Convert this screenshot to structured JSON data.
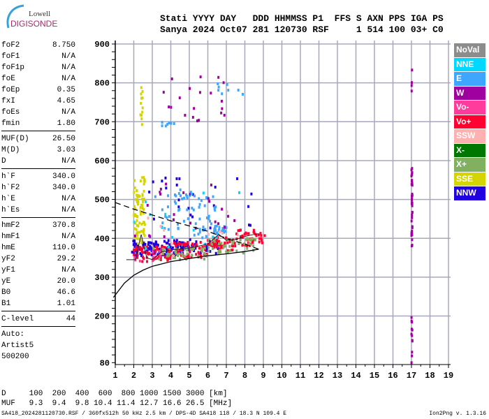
{
  "logo": {
    "line1": "Lowell",
    "line2": "DIGISONDE"
  },
  "header": {
    "labels": "Stati YYYY DAY   DDD HHMMSS P1  FFS S AXN PPS IGA PS",
    "values": "Sanya 2024 Oct07 281 120730 RSF     1 514 100 03+ C0"
  },
  "params": [
    [
      {
        "k": "foF2",
        "v": "8.750"
      },
      {
        "k": "foF1",
        "v": "N/A"
      },
      {
        "k": "foF1p",
        "v": "N/A"
      },
      {
        "k": "foE",
        "v": "N/A"
      },
      {
        "k": "foEp",
        "v": "0.35"
      },
      {
        "k": "fxI",
        "v": "4.65"
      },
      {
        "k": "foEs",
        "v": "N/A"
      },
      {
        "k": "fmin",
        "v": "1.80"
      }
    ],
    [
      {
        "k": "MUF(D)",
        "v": "26.50"
      },
      {
        "k": "M(D)",
        "v": "3.03"
      },
      {
        "k": "D",
        "v": "N/A"
      }
    ],
    [
      {
        "k": "h`F",
        "v": "340.0"
      },
      {
        "k": "h`F2",
        "v": "340.0"
      },
      {
        "k": "h`E",
        "v": "N/A"
      },
      {
        "k": "h`Es",
        "v": "N/A"
      }
    ],
    [
      {
        "k": "hmF2",
        "v": "370.8"
      },
      {
        "k": "hmF1",
        "v": "N/A"
      },
      {
        "k": "hmE",
        "v": "110.0"
      },
      {
        "k": "yF2",
        "v": "29.2"
      },
      {
        "k": "yF1",
        "v": "N/A"
      },
      {
        "k": "yE",
        "v": "20.0"
      },
      {
        "k": "B0",
        "v": "46.6"
      },
      {
        "k": "B1",
        "v": "1.01"
      }
    ],
    [
      {
        "k": "C-level",
        "v": "44"
      }
    ]
  ],
  "autoscaling": {
    "l1": "Auto:",
    "l2": "Artist5",
    "l3": "500200"
  },
  "legend": [
    {
      "label": "NoVal",
      "color": "#8c8c8c"
    },
    {
      "label": "NNE",
      "color": "#00d8ff"
    },
    {
      "label": "E",
      "color": "#3ea6ff"
    },
    {
      "label": "W",
      "color": "#a000a0"
    },
    {
      "label": "Vo-",
      "color": "#ff3c9c"
    },
    {
      "label": "Vo+",
      "color": "#ff0030"
    },
    {
      "label": "SSW",
      "color": "#ffb0b0"
    },
    {
      "label": "X-",
      "color": "#007800"
    },
    {
      "label": "X+",
      "color": "#80b060"
    },
    {
      "label": "SSE",
      "color": "#d4d400"
    },
    {
      "label": "NNW",
      "color": "#2000e0"
    }
  ],
  "muf_table": {
    "d_line": "D     100  200  400  600  800 1000 1500 3000 [km]",
    "muf_line": "MUF   9.3  9.4  9.8 10.4 11.4 12.7 16.6 26.5 [MHz]"
  },
  "footer": "SA418_2024281120730.RSF / 360fx512h 50 kHz 2.5 km / DPS-4D SA418 118 / 18.3 N 109.4 E",
  "version": "Ion2Png v. 1.3.16",
  "chart_data": {
    "type": "scatter",
    "xlim": [
      1,
      19
    ],
    "ylim": [
      75,
      900
    ],
    "xticks": [
      "1",
      "2",
      "3",
      "4",
      "5",
      "6",
      "7",
      "8",
      "9",
      "10",
      "11",
      "12",
      "13",
      "14",
      "15",
      "16",
      "17",
      "18",
      "19"
    ],
    "yticks": [
      "80",
      "200",
      "300",
      "400",
      "500",
      "600",
      "700",
      "800",
      "900"
    ],
    "grid": true,
    "legend_position": "right",
    "echo_clusters": [
      {
        "f": [
          2.0,
          2.6
        ],
        "h": [
          380,
          560
        ],
        "n": 90,
        "dir": "SSE"
      },
      {
        "f": [
          2.3,
          2.5
        ],
        "h": [
          690,
          800
        ],
        "n": 12,
        "dir": "SSE"
      },
      {
        "f": [
          1.9,
          4.5
        ],
        "h": [
          355,
          395
        ],
        "n": 90,
        "dir": "NNW"
      },
      {
        "f": [
          4.5,
          6.6
        ],
        "h": [
          360,
          398
        ],
        "n": 45,
        "dir": "NNW"
      },
      {
        "f": [
          2.5,
          8.5
        ],
        "h": [
          400,
          560
        ],
        "n": 25,
        "dir": "NNW"
      },
      {
        "f": [
          2.0,
          4.0
        ],
        "h": [
          340,
          380
        ],
        "n": 70,
        "dir": "Vo+"
      },
      {
        "f": [
          4.0,
          6.0
        ],
        "h": [
          350,
          392
        ],
        "n": 60,
        "dir": "Vo+"
      },
      {
        "f": [
          6.0,
          7.5
        ],
        "h": [
          368,
          402
        ],
        "n": 45,
        "dir": "Vo+"
      },
      {
        "f": [
          7.5,
          9.1
        ],
        "h": [
          380,
          422
        ],
        "n": 45,
        "dir": "Vo+"
      },
      {
        "f": [
          3.0,
          6.0
        ],
        "h": [
          345,
          375
        ],
        "n": 45,
        "dir": "X+"
      },
      {
        "f": [
          6.0,
          8.6
        ],
        "h": [
          362,
          400
        ],
        "n": 45,
        "dir": "X+"
      },
      {
        "f": [
          3.0,
          5.2
        ],
        "h": [
          420,
          525
        ],
        "n": 35,
        "dir": "E"
      },
      {
        "f": [
          5.2,
          6.5
        ],
        "h": [
          400,
          510
        ],
        "n": 30,
        "dir": "E"
      },
      {
        "f": [
          6.3,
          7.0
        ],
        "h": [
          410,
          432
        ],
        "n": 25,
        "dir": "E"
      },
      {
        "f": [
          3.5,
          4.2
        ],
        "h": [
          688,
          700
        ],
        "n": 8,
        "dir": "E"
      },
      {
        "f": [
          6.5,
          8.1
        ],
        "h": [
          770,
          800
        ],
        "n": 8,
        "dir": "E"
      },
      {
        "f": [
          2.0,
          8.0
        ],
        "h": [
          380,
          560
        ],
        "n": 25,
        "dir": "W"
      },
      {
        "f": [
          3.5,
          7.0
        ],
        "h": [
          700,
          820
        ],
        "n": 20,
        "dir": "W"
      },
      {
        "f": [
          17.0,
          17.05
        ],
        "h": [
          380,
          580
        ],
        "n": 40,
        "dir": "W"
      },
      {
        "f": [
          17.0,
          17.05
        ],
        "h": [
          80,
          200
        ],
        "n": 12,
        "dir": "W"
      },
      {
        "f": [
          17.0,
          17.05
        ],
        "h": [
          770,
          835
        ],
        "n": 4,
        "dir": "W"
      },
      {
        "f": [
          2.0,
          8.0
        ],
        "h": [
          340,
          540
        ],
        "n": 15,
        "dir": "NNE"
      },
      {
        "f": [
          2.0,
          8.0
        ],
        "h": [
          340,
          500
        ],
        "n": 10,
        "dir": "SSW"
      },
      {
        "f": [
          1.9,
          3.5
        ],
        "h": [
          340,
          370
        ],
        "n": 10,
        "dir": "Vo-"
      }
    ],
    "profile": [
      [
        0.9,
        248
      ],
      [
        1.5,
        285
      ],
      [
        2,
        305
      ],
      [
        2.5,
        318
      ],
      [
        3,
        328
      ],
      [
        4,
        340
      ],
      [
        5,
        348
      ],
      [
        6,
        355
      ],
      [
        7,
        360
      ],
      [
        8,
        366
      ],
      [
        8.75,
        372
      ]
    ],
    "profile_topside": [
      [
        8.75,
        372
      ],
      [
        8,
        385
      ],
      [
        7,
        400
      ],
      [
        6,
        418
      ],
      [
        5,
        432
      ],
      [
        4,
        445
      ],
      [
        3,
        460
      ],
      [
        2,
        475
      ],
      [
        1,
        492
      ]
    ],
    "trace": [
      [
        1.6,
        345
      ],
      [
        2.1,
        345
      ],
      [
        2.4,
        410
      ],
      [
        2.7,
        350
      ],
      [
        3,
        345
      ],
      [
        3.5,
        365
      ],
      [
        4,
        370
      ],
      [
        5,
        375
      ],
      [
        6,
        385
      ],
      [
        6.6,
        410
      ],
      [
        7,
        395
      ],
      [
        7.5,
        397
      ],
      [
        8,
        405
      ],
      [
        8.5,
        410
      ],
      [
        8.75,
        412
      ]
    ]
  }
}
